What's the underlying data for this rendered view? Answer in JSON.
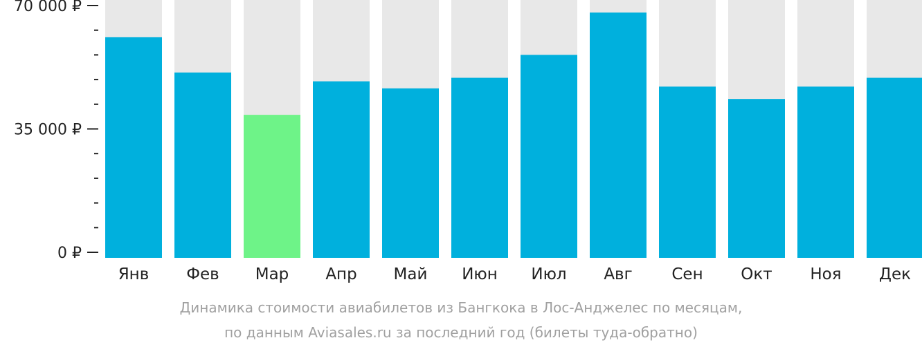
{
  "chart_data": {
    "type": "bar",
    "categories": [
      "Янв",
      "Фев",
      "Мар",
      "Апр",
      "Май",
      "Июн",
      "Июл",
      "Авг",
      "Сен",
      "Окт",
      "Ноя",
      "Дек"
    ],
    "values": [
      61000,
      51000,
      39000,
      48500,
      46500,
      49500,
      56000,
      68000,
      47000,
      43500,
      47000,
      49500
    ],
    "highlight_index": 2,
    "ylim": [
      0,
      72000
    ],
    "y_ticks": [
      {
        "value": 70000,
        "label": "70 000 ₽"
      },
      {
        "value": 35000,
        "label": "35 000 ₽"
      },
      {
        "value": 0,
        "label": "0 ₽"
      }
    ],
    "y_minor_step": 7000,
    "title": "",
    "xlabel": "",
    "ylabel": "",
    "grid": false,
    "colors": {
      "bar": "#00b0dd",
      "highlight": "#6ef388",
      "track": "#e8e8e8",
      "axis": "#222222",
      "label": "#222222"
    }
  },
  "caption": {
    "line1": "Динамика стоимости авиабилетов из Бангкока в Лос-Анджелес по месяцам,",
    "line2": "по данным Aviasales.ru за последний год (билеты туда-обратно)"
  }
}
